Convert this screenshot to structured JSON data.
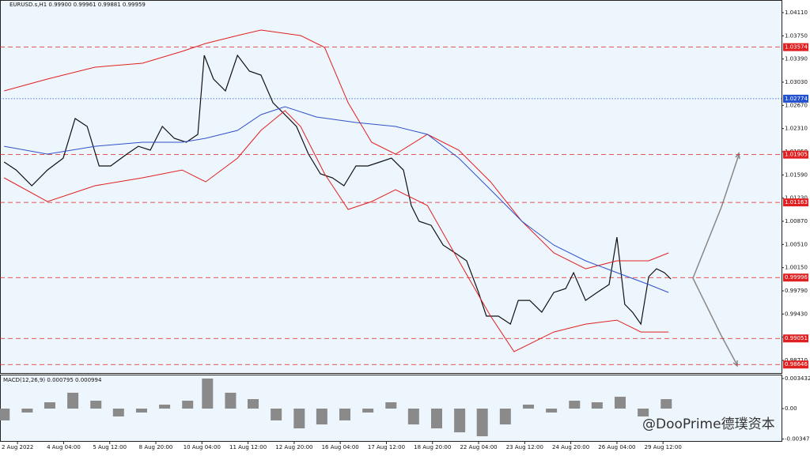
{
  "chart_data": [
    {
      "type": "line",
      "title": "EURUSD.s,H1  0.99900 0.99961 0.99881 0.99959",
      "categories": [
        "2 Aug 2022",
        "4 Aug 04:00",
        "5 Aug 12:00",
        "8 Aug 20:00",
        "10 Aug 04:00",
        "11 Aug 12:00",
        "12 Aug 20:00",
        "16 Aug 04:00",
        "17 Aug 12:00",
        "18 Aug 20:00",
        "22 Aug 04:00",
        "23 Aug 12:00",
        "24 Aug 20:00",
        "26 Aug 04:00",
        "29 Aug 12:00"
      ],
      "xlim": [
        -0.38,
        16.57
      ],
      "ylim": [
        0.98514,
        1.04306
      ],
      "yticks": [
        {
          "value": 1.0411,
          "label": "1.04110"
        },
        {
          "value": 1.0375,
          "label": "1.03750"
        },
        {
          "value": 1.0339,
          "label": "1.03390"
        },
        {
          "value": 1.0303,
          "label": "1.03030"
        },
        {
          "value": 1.0267,
          "label": "1.02670"
        },
        {
          "value": 1.0231,
          "label": "1.02310"
        },
        {
          "value": 1.0195,
          "label": "1.01950"
        },
        {
          "value": 1.0159,
          "label": "1.01590"
        },
        {
          "value": 1.0123,
          "label": "1.01230"
        },
        {
          "value": 1.0087,
          "label": "1.00870"
        },
        {
          "value": 1.0051,
          "label": "1.00510"
        },
        {
          "value": 1.0015,
          "label": "1.00150"
        },
        {
          "value": 0.9979,
          "label": "0.99790"
        },
        {
          "value": 0.9943,
          "label": "0.99430"
        },
        {
          "value": 0.9907,
          "label": "0.99070"
        },
        {
          "value": 0.9871,
          "label": "0.98710"
        }
      ],
      "levels": [
        {
          "value": 1.03574,
          "color": "#e02020",
          "style": "dashed"
        },
        {
          "value": 1.02774,
          "color": "#2050d0",
          "style": "dotted"
        },
        {
          "value": 1.01905,
          "color": "#e02020",
          "style": "dashed"
        },
        {
          "value": 1.01163,
          "color": "#e02020",
          "style": "dashed"
        },
        {
          "value": 0.99996,
          "color": "#e02020",
          "style": "dashed"
        },
        {
          "value": 0.99051,
          "color": "#e02020",
          "style": "dashed"
        },
        {
          "value": 0.98646,
          "color": "#e02020",
          "style": "dashed"
        }
      ],
      "series": [
        {
          "color": "#111111",
          "x": [
            -0.29,
            -0.03,
            0.31,
            0.65,
            0.99,
            1.25,
            1.51,
            1.77,
            2.02,
            2.37,
            2.62,
            2.88,
            3.14,
            3.4,
            3.66,
            3.91,
            4.05,
            4.25,
            4.51,
            4.77,
            5.03,
            5.28,
            5.54,
            5.8,
            6.05,
            6.31,
            6.57,
            6.83,
            7.08,
            7.34,
            7.6,
            7.86,
            8.11,
            8.37,
            8.54,
            8.71,
            8.97,
            9.23,
            9.49,
            9.74,
            10.0,
            10.17,
            10.43,
            10.69,
            10.86,
            11.11,
            11.37,
            11.63,
            11.89,
            12.06,
            12.32,
            12.57,
            12.83,
            13.0,
            13.17,
            13.34,
            13.52,
            13.69,
            13.86,
            14.03,
            14.17
          ],
          "values": [
            1.0179,
            1.01667,
            1.01422,
            1.01667,
            1.01851,
            1.02465,
            1.02342,
            1.01729,
            1.01729,
            1.01913,
            1.02035,
            1.01974,
            1.02342,
            1.02158,
            1.02097,
            1.0222,
            1.03447,
            1.03079,
            1.02895,
            1.03447,
            1.03201,
            1.0314,
            1.02711,
            1.02526,
            1.02342,
            1.01913,
            1.01606,
            1.01545,
            1.01422,
            1.01729,
            1.01729,
            1.0179,
            1.01851,
            1.01667,
            1.01115,
            1.0087,
            1.00808,
            1.00501,
            1.00379,
            1.00256,
            0.99765,
            0.99397,
            0.99397,
            0.99274,
            0.99642,
            0.99642,
            0.99458,
            0.99765,
            0.99826,
            1.00072,
            0.99642,
            0.99765,
            0.99888,
            1.00624,
            0.99581,
            0.99458,
            0.99274,
            1.0001,
            1.00133,
            1.00072,
            0.99974
          ]
        },
        {
          "color": "#e02020",
          "x": [
            -0.29,
            0.65,
            1.68,
            2.71,
            3.57,
            4.08,
            4.77,
            5.28,
            6.14,
            6.66,
            7.17,
            7.68,
            8.2,
            8.89,
            9.57,
            10.26,
            10.94,
            11.63,
            12.32,
            13.0,
            13.69,
            14.12
          ],
          "values": [
            1.02895,
            1.03079,
            1.03263,
            1.03324,
            1.03508,
            1.03631,
            1.03754,
            1.0384,
            1.03754,
            1.0357,
            1.02711,
            1.02097,
            1.01913,
            1.0222,
            1.01974,
            1.01483,
            1.0087,
            1.00379,
            1.00133,
            1.00256,
            1.00256,
            1.00379
          ]
        },
        {
          "color": "#e02020",
          "x": [
            -0.29,
            0.65,
            1.68,
            2.71,
            3.57,
            4.08,
            4.77,
            5.28,
            5.8,
            6.14,
            6.66,
            7.17,
            7.68,
            8.2,
            8.89,
            9.57,
            10.26,
            10.77,
            11.63,
            12.32,
            13.0,
            13.52,
            14.12
          ],
          "values": [
            1.01545,
            1.01176,
            1.01422,
            1.01545,
            1.01667,
            1.01483,
            1.01851,
            1.02281,
            1.02588,
            1.02342,
            1.01606,
            1.01054,
            1.01176,
            1.0136,
            1.01115,
            1.00256,
            0.99397,
            0.98845,
            0.99151,
            0.99274,
            0.99335,
            0.99151,
            0.99151
          ]
        },
        {
          "color": "#3050c8",
          "x": [
            -0.29,
            0.65,
            1.68,
            2.71,
            3.57,
            4.08,
            4.77,
            5.28,
            5.8,
            6.48,
            7.34,
            8.2,
            8.89,
            9.57,
            10.26,
            10.94,
            11.63,
            12.32,
            13.0,
            13.69,
            14.12
          ],
          "values": [
            1.02035,
            1.01913,
            1.02035,
            1.02097,
            1.02097,
            1.02158,
            1.02281,
            1.02526,
            1.02649,
            1.0249,
            1.02404,
            1.02342,
            1.0222,
            1.01851,
            1.0136,
            1.0087,
            1.00501,
            1.00256,
            1.00072,
            0.99888,
            0.99765
          ]
        }
      ]
    },
    {
      "type": "bar",
      "title": "MACD(12,26,9) 0.000795 0.000994",
      "color": "#8a8a8a",
      "xlim": [
        -0.38,
        16.57
      ],
      "ylim": [
        -0.0037,
        0.00388
      ],
      "yticks": [
        0.003432,
        {
          "value": 0,
          "label": "0.00"
        },
        -0.003478
      ],
      "x": [
        -0.29,
        0.21,
        0.7,
        1.2,
        1.7,
        2.19,
        2.69,
        3.19,
        3.69,
        4.12,
        4.62,
        5.11,
        5.61,
        6.11,
        6.6,
        7.1,
        7.6,
        8.1,
        8.59,
        9.09,
        9.59,
        10.08,
        10.58,
        11.08,
        11.58,
        12.08,
        12.57,
        13.07,
        13.57,
        14.07
      ],
      "values": [
        -0.00135,
        -0.00045,
        0.00072,
        0.00181,
        0.0009,
        -0.0009,
        -0.00045,
        0.00045,
        0.0009,
        0.00343,
        0.00181,
        0.00108,
        -0.00135,
        -0.00226,
        -0.00181,
        -0.00135,
        -0.00045,
        0.00072,
        -0.00181,
        -0.00226,
        -0.00271,
        -0.00316,
        -0.00181,
        0.00045,
        -0.00045,
        0.0009,
        0.00072,
        0.00135,
        -0.0009,
        0.00108
      ]
    }
  ],
  "watermark": "@DooPrime德璞资本"
}
